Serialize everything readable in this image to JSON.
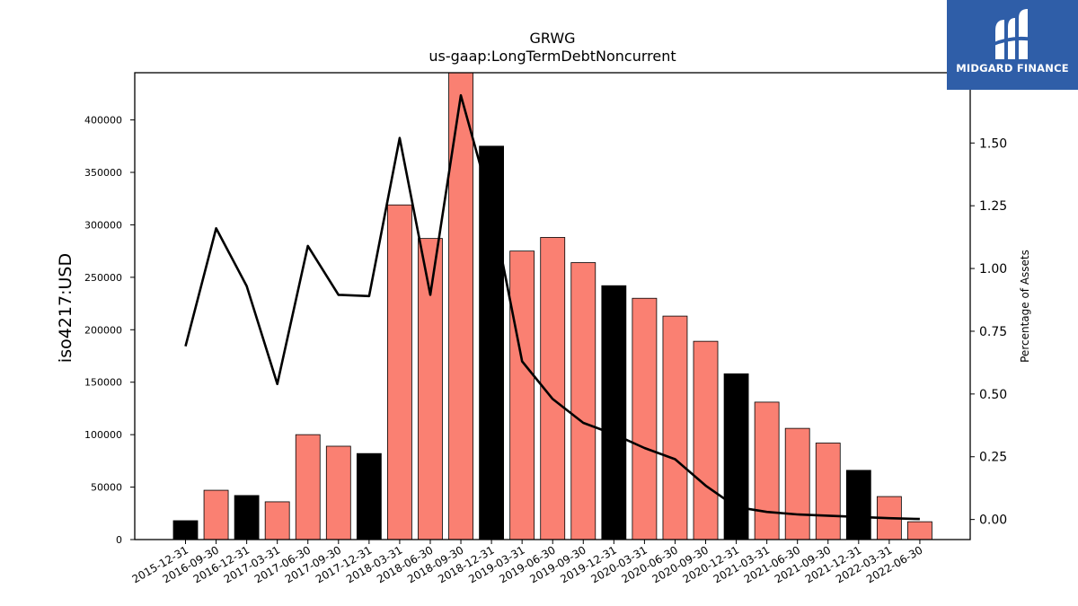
{
  "brand": {
    "name": "MIDGARD FINANCE",
    "bg_color": "#2f5ea8"
  },
  "chart_data": {
    "type": "bar",
    "title": "GRWG",
    "subtitle": "us-gaap:LongTermDebtNoncurrent",
    "ylabel": "iso4217:USD",
    "y2label": "Percentage of Assets",
    "ylim": [
      0,
      445000
    ],
    "y2lim": [
      -0.08,
      1.78
    ],
    "yticks": [
      0,
      50000,
      100000,
      150000,
      200000,
      250000,
      300000,
      350000,
      400000
    ],
    "y2ticks": [
      "0.00",
      "0.25",
      "0.50",
      "0.75",
      "1.00",
      "1.25",
      "1.50"
    ],
    "grid": false,
    "colors": {
      "annual": "#000000",
      "quarterly": "#fa8072",
      "line": "#000000"
    },
    "categories": [
      "2015-12-31",
      "2016-09-30",
      "2016-12-31",
      "2017-03-31",
      "2017-06-30",
      "2017-09-30",
      "2017-12-31",
      "2018-03-31",
      "2018-06-30",
      "2018-09-30",
      "2018-12-31",
      "2019-03-31",
      "2019-06-30",
      "2019-09-30",
      "2019-12-31",
      "2020-03-31",
      "2020-06-30",
      "2020-09-30",
      "2020-12-31",
      "2021-03-31",
      "2021-06-30",
      "2021-09-30",
      "2021-12-31",
      "2022-03-31",
      "2022-06-30"
    ],
    "values": [
      18000,
      47000,
      42000,
      36000,
      100000,
      89000,
      82000,
      319000,
      287000,
      445000,
      375000,
      275000,
      288000,
      264000,
      242000,
      230000,
      213000,
      189000,
      158000,
      131000,
      106000,
      92000,
      66000,
      41000,
      17000
    ],
    "bar_kind": [
      "annual",
      "quarterly",
      "annual",
      "quarterly",
      "quarterly",
      "quarterly",
      "annual",
      "quarterly",
      "quarterly",
      "quarterly",
      "annual",
      "quarterly",
      "quarterly",
      "quarterly",
      "annual",
      "quarterly",
      "quarterly",
      "quarterly",
      "annual",
      "quarterly",
      "quarterly",
      "quarterly",
      "annual",
      "quarterly",
      "quarterly"
    ],
    "series": [
      {
        "axis": "right",
        "values": [
          0.69,
          1.16,
          0.93,
          0.54,
          1.09,
          0.895,
          0.89,
          1.52,
          0.895,
          1.69,
          1.25,
          0.63,
          0.48,
          0.385,
          0.34,
          0.285,
          0.24,
          0.135,
          0.05,
          0.03,
          0.02,
          0.015,
          0.01,
          0.005,
          0.002
        ]
      }
    ]
  }
}
